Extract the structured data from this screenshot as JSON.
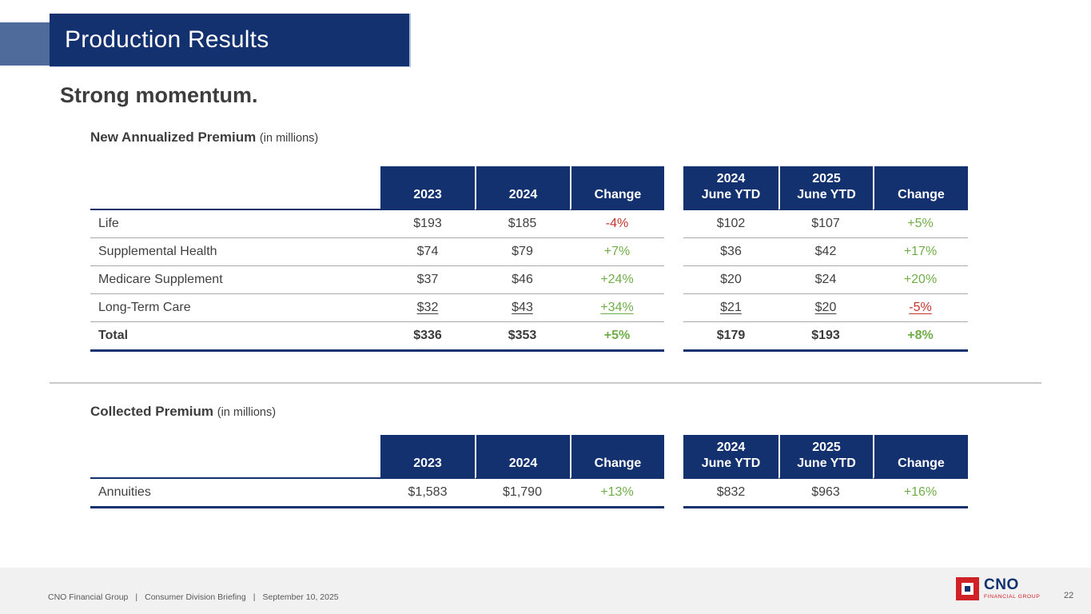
{
  "colors": {
    "navy": "#13316e",
    "accentBlue": "#4e6b9c",
    "green": "#70ad47",
    "red": "#c5342b",
    "text": "#404040",
    "footerText": "#595959",
    "logoRed": "#d02127"
  },
  "header": {
    "banner_title": "Production Results",
    "subtitle": "Strong momentum."
  },
  "tables": [
    {
      "title": "New Annualized Premium",
      "unit": "(in millions)",
      "headers": {
        "a1": "2023",
        "a2": "2024",
        "a_chg": "Change",
        "y1_line1": "2024",
        "y1_line2": "June YTD",
        "y2_line1": "2025",
        "y2_line2": "June YTD",
        "y_chg": "Change"
      },
      "rows": [
        {
          "label": "Life",
          "a1": "$193",
          "a2": "$185",
          "a_chg": "-4%",
          "a_dir": "neg",
          "y1": "$102",
          "y2": "$107",
          "y_chg": "+5%",
          "y_dir": "pos"
        },
        {
          "label": "Supplemental Health",
          "a1": "$74",
          "a2": "$79",
          "a_chg": "+7%",
          "a_dir": "pos",
          "y1": "$36",
          "y2": "$42",
          "y_chg": "+17%",
          "y_dir": "pos"
        },
        {
          "label": "Medicare Supplement",
          "a1": "$37",
          "a2": "$46",
          "a_chg": "+24%",
          "a_dir": "pos",
          "y1": "$20",
          "y2": "$24",
          "y_chg": "+20%",
          "y_dir": "pos"
        },
        {
          "label": "Long-Term Care",
          "a1": "$32",
          "a2": "$43",
          "a_chg": "+34%",
          "a_dir": "pos",
          "y1": "$21",
          "y2": "$20",
          "y_chg": "-5%",
          "y_dir": "neg"
        },
        {
          "label": "Total",
          "a1": "$336",
          "a2": "$353",
          "a_chg": "+5%",
          "a_dir": "pos",
          "y1": "$179",
          "y2": "$193",
          "y_chg": "+8%",
          "y_dir": "pos"
        }
      ]
    },
    {
      "title": "Collected Premium",
      "unit": "(in millions)",
      "headers": {
        "a1": "2023",
        "a2": "2024",
        "a_chg": "Change",
        "y1_line1": "2024",
        "y1_line2": "June YTD",
        "y2_line1": "2025",
        "y2_line2": "June YTD",
        "y_chg": "Change"
      },
      "rows": [
        {
          "label": "Annuities",
          "a1": "$1,583",
          "a2": "$1,790",
          "a_chg": "+13%",
          "a_dir": "pos",
          "y1": "$832",
          "y2": "$963",
          "y_chg": "+16%",
          "y_dir": "pos"
        }
      ]
    }
  ],
  "footer": {
    "company": "CNO Financial Group",
    "pipe": "|",
    "event": "Consumer Division Briefing",
    "date": "September 10, 2025",
    "page": "22",
    "logo_text": "CNO",
    "logo_sub": "FINANCIAL GROUP"
  }
}
